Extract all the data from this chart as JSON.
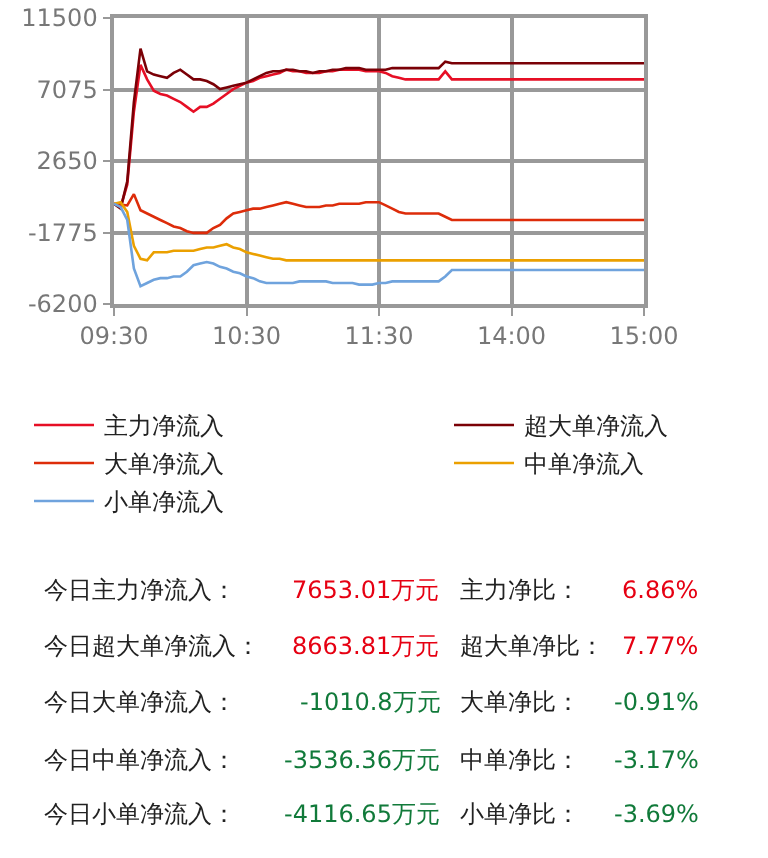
{
  "chart_data": {
    "type": "line",
    "categories": [
      "09:30",
      null,
      null,
      null,
      null,
      null,
      null,
      null,
      null,
      null,
      null,
      null,
      null,
      null,
      null,
      null,
      null,
      null,
      null,
      null,
      "10:30",
      null,
      null,
      null,
      null,
      null,
      null,
      null,
      null,
      null,
      null,
      null,
      null,
      null,
      null,
      null,
      null,
      null,
      null,
      null,
      "11:30",
      null,
      null,
      null,
      null,
      null,
      null,
      null,
      null,
      null,
      null,
      null,
      null,
      null,
      null,
      null,
      null,
      null,
      null,
      null,
      "14:00",
      null,
      null,
      null,
      null,
      null,
      null,
      null,
      null,
      null,
      null,
      null,
      null,
      null,
      null,
      null,
      null,
      null,
      null,
      null,
      "15:00"
    ],
    "ylim": [
      -6200,
      11500
    ],
    "yticks": [
      -6200,
      -1775,
      2650,
      7075,
      11500
    ],
    "grid": true,
    "legend": "bottom",
    "marker": "none",
    "line_style": "solid",
    "series": [
      {
        "name": "主力净流入",
        "color": "#e60f25",
        "values": [
          0,
          -200,
          1200,
          5700,
          8600,
          7700,
          7000,
          6800,
          6700,
          6500,
          6300,
          6000,
          5700,
          6000,
          6000,
          6200,
          6500,
          6800,
          7100,
          7300,
          7500,
          7600,
          7800,
          7900,
          8000,
          8100,
          8300,
          8200,
          8200,
          8100,
          8100,
          8100,
          8200,
          8200,
          8300,
          8300,
          8300,
          8300,
          8200,
          8200,
          8200,
          8100,
          7900,
          7800,
          7700,
          7700,
          7700,
          7700,
          7700,
          7700,
          8200,
          7700,
          7700,
          7700,
          7700,
          7700,
          7700,
          7700,
          7700,
          7700,
          7700,
          7700,
          7700,
          7700,
          7700,
          7700,
          7700,
          7700,
          7700,
          7700,
          7700,
          7700,
          7700,
          7700,
          7700,
          7700,
          7700,
          7700,
          7700,
          7700,
          7700
        ]
      },
      {
        "name": "超大单净流入",
        "color": "#7a0006",
        "values": [
          0,
          -300,
          1400,
          6300,
          9600,
          8200,
          8000,
          7900,
          7800,
          8100,
          8300,
          8000,
          7700,
          7700,
          7600,
          7400,
          7100,
          7200,
          7300,
          7400,
          7500,
          7700,
          7900,
          8100,
          8200,
          8200,
          8300,
          8300,
          8200,
          8200,
          8100,
          8200,
          8200,
          8300,
          8300,
          8400,
          8400,
          8400,
          8300,
          8300,
          8300,
          8300,
          8400,
          8400,
          8400,
          8400,
          8400,
          8400,
          8400,
          8400,
          8800,
          8700,
          8700,
          8700,
          8700,
          8700,
          8700,
          8700,
          8700,
          8700,
          8700,
          8700,
          8700,
          8700,
          8700,
          8700,
          8700,
          8700,
          8700,
          8700,
          8700,
          8700,
          8700,
          8700,
          8700,
          8700,
          8700,
          8700,
          8700,
          8700,
          8700
        ]
      },
      {
        "name": "大单净流入",
        "color": "#dd2c0a",
        "values": [
          0,
          -50,
          -100,
          600,
          -400,
          -600,
          -800,
          -1000,
          -1200,
          -1400,
          -1500,
          -1700,
          -1800,
          -1800,
          -1800,
          -1500,
          -1300,
          -900,
          -600,
          -500,
          -400,
          -300,
          -300,
          -200,
          -100,
          0,
          100,
          0,
          -100,
          -200,
          -200,
          -200,
          -100,
          -100,
          0,
          0,
          0,
          0,
          100,
          100,
          100,
          -100,
          -300,
          -500,
          -600,
          -600,
          -600,
          -600,
          -600,
          -600,
          -800,
          -1000,
          -1000,
          -1000,
          -1000,
          -1000,
          -1000,
          -1000,
          -1000,
          -1000,
          -1000,
          -1000,
          -1000,
          -1000,
          -1000,
          -1000,
          -1000,
          -1000,
          -1000,
          -1000,
          -1000,
          -1000,
          -1000,
          -1000,
          -1000,
          -1000,
          -1000,
          -1000,
          -1000,
          -1000,
          -1000
        ]
      },
      {
        "name": "中单净流入",
        "color": "#eba000",
        "values": [
          0,
          100,
          -500,
          -2600,
          -3400,
          -3500,
          -3000,
          -3000,
          -3000,
          -2900,
          -2900,
          -2900,
          -2900,
          -2800,
          -2700,
          -2700,
          -2600,
          -2500,
          -2700,
          -2800,
          -3000,
          -3100,
          -3200,
          -3300,
          -3400,
          -3400,
          -3500,
          -3500,
          -3500,
          -3500,
          -3500,
          -3500,
          -3500,
          -3500,
          -3500,
          -3500,
          -3500,
          -3500,
          -3500,
          -3500,
          -3500,
          -3500,
          -3500,
          -3500,
          -3500,
          -3500,
          -3500,
          -3500,
          -3500,
          -3500,
          -3500,
          -3500,
          -3500,
          -3500,
          -3500,
          -3500,
          -3500,
          -3500,
          -3500,
          -3500,
          -3500,
          -3500,
          -3500,
          -3500,
          -3500,
          -3500,
          -3500,
          -3500,
          -3500,
          -3500,
          -3500,
          -3500,
          -3500,
          -3500,
          -3500,
          -3500,
          -3500,
          -3500,
          -3500,
          -3500,
          -3500
        ]
      },
      {
        "name": "小单净流入",
        "color": "#6fa3dd",
        "values": [
          0,
          -200,
          -1000,
          -4000,
          -5100,
          -4900,
          -4700,
          -4600,
          -4600,
          -4500,
          -4500,
          -4200,
          -3800,
          -3700,
          -3600,
          -3700,
          -3900,
          -4000,
          -4200,
          -4300,
          -4500,
          -4600,
          -4800,
          -4900,
          -4900,
          -4900,
          -4900,
          -4900,
          -4800,
          -4800,
          -4800,
          -4800,
          -4800,
          -4900,
          -4900,
          -4900,
          -4900,
          -5000,
          -5000,
          -5000,
          -4900,
          -4900,
          -4800,
          -4800,
          -4800,
          -4800,
          -4800,
          -4800,
          -4800,
          -4800,
          -4500,
          -4100,
          -4100,
          -4100,
          -4100,
          -4100,
          -4100,
          -4100,
          -4100,
          -4100,
          -4100,
          -4100,
          -4100,
          -4100,
          -4100,
          -4100,
          -4100,
          -4100,
          -4100,
          -4100,
          -4100,
          -4100,
          -4100,
          -4100,
          -4100,
          -4100,
          -4100,
          -4100,
          -4100,
          -4100,
          -4100
        ]
      }
    ],
    "annotations": [
      "今日主力净流入：",
      "7653.01万元",
      "主力净比：",
      "6.86%",
      "今日超大单净流入：",
      "8663.81万元",
      "超大单净比：",
      "7.77%",
      "今日大单净流入：",
      "-1010.8万元",
      "大单净比：",
      "-0.91%",
      "今日中单净流入：",
      "-3536.36万元",
      "中单净比：",
      "-3.17%",
      "今日小单净流入：",
      "-4116.65万元",
      "小单净比：",
      "-3.69%"
    ]
  }
}
